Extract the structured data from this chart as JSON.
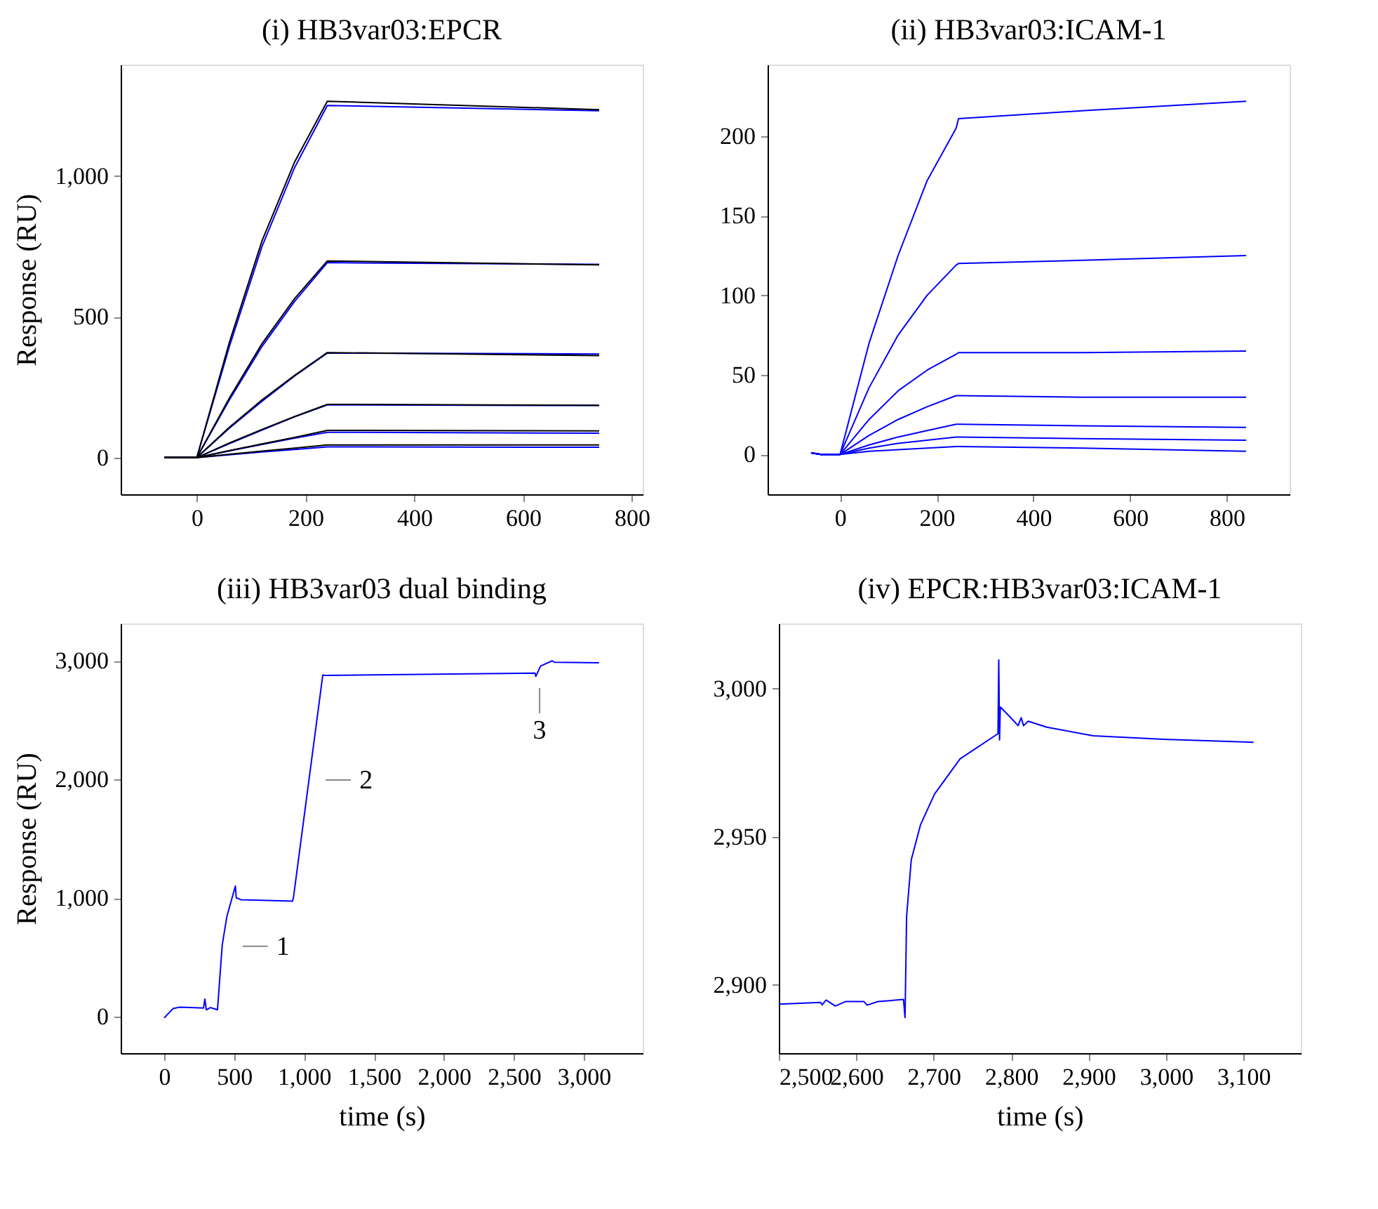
{
  "chart_data": [
    {
      "type": "line",
      "title": "(i) HB3var03:EPCR",
      "ylabel": "Response (RU)",
      "xlim": [
        -140,
        820
      ],
      "ylim": [
        -130,
        1395
      ],
      "xticks": [
        0,
        200,
        400,
        600,
        800
      ],
      "yticks": [
        0,
        500,
        {
          "value": 1000,
          "label": "1,000"
        }
      ],
      "grid": false,
      "legend": false,
      "series": [
        {
          "color": "#0000ff",
          "x": [
            -60,
            0,
            60,
            120,
            180,
            240,
            740
          ],
          "values": [
            0,
            0,
            395,
            750,
            1030,
            1250,
            1231
          ]
        },
        {
          "color": "#0000ff",
          "x": [
            -60,
            0,
            60,
            120,
            180,
            240,
            740
          ],
          "values": [
            0,
            0,
            205,
            395,
            555,
            692,
            686
          ]
        },
        {
          "color": "#0000ff",
          "x": [
            -60,
            0,
            60,
            120,
            180,
            240,
            740
          ],
          "values": [
            0,
            0,
            105,
            200,
            290,
            371,
            368
          ]
        },
        {
          "color": "#0000ff",
          "x": [
            -60,
            0,
            60,
            120,
            180,
            240,
            740
          ],
          "values": [
            0,
            0,
            50,
            98,
            145,
            187,
            185
          ]
        },
        {
          "color": "#0000ff",
          "x": [
            -60,
            0,
            60,
            120,
            180,
            240,
            740
          ],
          "values": [
            0,
            0,
            24,
            47,
            69,
            90,
            87
          ]
        },
        {
          "color": "#0000ff",
          "x": [
            -60,
            0,
            60,
            120,
            180,
            240,
            740
          ],
          "values": [
            0,
            0,
            10,
            20,
            29,
            38,
            37
          ]
        },
        {
          "color": "#000000",
          "x": [
            -60,
            0,
            60,
            120,
            180,
            240,
            740
          ],
          "values": [
            0,
            0,
            410,
            770,
            1050,
            1265,
            1235
          ]
        },
        {
          "color": "#000000",
          "x": [
            -60,
            0,
            60,
            120,
            180,
            240,
            740
          ],
          "values": [
            0,
            0,
            212,
            405,
            565,
            698,
            684
          ]
        },
        {
          "color": "#000000",
          "x": [
            -60,
            0,
            60,
            120,
            180,
            240,
            740
          ],
          "values": [
            0,
            0,
            108,
            205,
            292,
            373,
            362
          ]
        },
        {
          "color": "#000000",
          "x": [
            -60,
            0,
            60,
            120,
            180,
            240,
            740
          ],
          "values": [
            0,
            0,
            52,
            100,
            146,
            189,
            186
          ]
        },
        {
          "color": "#000000",
          "x": [
            -60,
            0,
            60,
            120,
            180,
            240,
            740
          ],
          "values": [
            0,
            0,
            25,
            49,
            72,
            97,
            95
          ]
        },
        {
          "color": "#000000",
          "x": [
            -60,
            0,
            60,
            120,
            180,
            240,
            740
          ],
          "values": [
            0,
            0,
            12,
            23,
            34,
            45,
            45
          ]
        }
      ]
    },
    {
      "type": "line",
      "title": "(ii) HB3var03:ICAM-1",
      "xlim": [
        -150,
        930
      ],
      "ylim": [
        -25,
        245
      ],
      "xticks": [
        0,
        200,
        400,
        600,
        800
      ],
      "yticks": [
        0,
        50,
        100,
        150,
        200
      ],
      "grid": false,
      "legend": false,
      "series": [
        {
          "color": "#0000ff",
          "x": [
            -60,
            -40,
            0,
            60,
            120,
            180,
            240,
            245,
            500,
            840
          ],
          "values": [
            1,
            0,
            0,
            70,
            125,
            172,
            205,
            211,
            216,
            222
          ]
        },
        {
          "color": "#0000ff",
          "x": [
            -60,
            -40,
            0,
            60,
            120,
            180,
            240,
            245,
            500,
            840
          ],
          "values": [
            1,
            0,
            0,
            42,
            75,
            100,
            119,
            120,
            122,
            125
          ]
        },
        {
          "color": "#0000ff",
          "x": [
            -60,
            -40,
            0,
            60,
            120,
            180,
            240,
            245,
            500,
            840
          ],
          "values": [
            1,
            0,
            0,
            22,
            40,
            53,
            63,
            64,
            64,
            65
          ]
        },
        {
          "color": "#0000ff",
          "x": [
            -60,
            -40,
            0,
            60,
            120,
            180,
            240,
            245,
            500,
            840
          ],
          "values": [
            1,
            0,
            0,
            12,
            22,
            30,
            37,
            37,
            36,
            36
          ]
        },
        {
          "color": "#0000ff",
          "x": [
            -60,
            -40,
            0,
            60,
            120,
            180,
            240,
            245,
            500,
            840
          ],
          "values": [
            1,
            0,
            0,
            6,
            11,
            15,
            19,
            19,
            18,
            17
          ]
        },
        {
          "color": "#0000ff",
          "x": [
            -60,
            -40,
            0,
            60,
            120,
            180,
            240,
            245,
            500,
            840
          ],
          "values": [
            1,
            0,
            0,
            4,
            7,
            9,
            11,
            11,
            10,
            9
          ]
        },
        {
          "color": "#0000ff",
          "x": [
            -60,
            -40,
            0,
            60,
            120,
            180,
            240,
            245,
            500,
            840
          ],
          "values": [
            1,
            0,
            0,
            2,
            3,
            4,
            5,
            5,
            4,
            2
          ]
        }
      ]
    },
    {
      "type": "line",
      "title": "(iii) HB3var03 dual binding",
      "xlabel": "time (s)",
      "ylabel": "Response (RU)",
      "xlim": [
        -311,
        3421
      ],
      "ylim": [
        -305,
        3315
      ],
      "xticks": [
        0,
        500,
        {
          "value": 1000,
          "label": "1,000"
        },
        {
          "value": 1500,
          "label": "1,500"
        },
        {
          "value": 2000,
          "label": "2,000"
        },
        {
          "value": 2500,
          "label": "2,500"
        },
        {
          "value": 3000,
          "label": "3,000"
        }
      ],
      "yticks": [
        0,
        {
          "value": 1000,
          "label": "1,000"
        },
        {
          "value": 2000,
          "label": "2,000"
        },
        {
          "value": 3000,
          "label": "3,000"
        }
      ],
      "grid": false,
      "legend": false,
      "annotations": [
        {
          "text": "1",
          "x": 440,
          "y": 595
        },
        {
          "text": "2",
          "x": 1034,
          "y": 1996
        },
        {
          "text": "3",
          "x": 2684,
          "y": 2889
        }
      ],
      "series": [
        {
          "color": "#0000ff",
          "x": [
            0,
            64,
            114,
            281,
            291,
            301,
            331,
            381,
            415,
            448,
            509,
            515,
            549,
            917,
            924,
            1134,
            1151,
            2651,
            2657,
            2691,
            2774,
            2791,
            3109
          ],
          "values": [
            -8,
            71,
            83,
            75,
            151,
            60,
            79,
            60,
            607,
            845,
            1103,
            1004,
            988,
            976,
            1004,
            2881,
            2877,
            2897,
            2869,
            2956,
            3000,
            2988,
            2984
          ]
        }
      ]
    },
    {
      "type": "line",
      "title": "(iv) EPCR:HB3var03:ICAM-1",
      "xlabel": "time (s)",
      "xlim": [
        2500,
        3174
      ],
      "ylim": [
        2877,
        3022
      ],
      "xticks": [
        {
          "value": 2500,
          "label": "2,500"
        },
        {
          "value": 2600,
          "label": "2,600"
        },
        {
          "value": 2700,
          "label": "2,700"
        },
        {
          "value": 2800,
          "label": "2,800"
        },
        {
          "value": 2900,
          "label": "2,900"
        },
        {
          "value": 3000,
          "label": "3,000"
        },
        {
          "value": 3100,
          "label": "3,100"
        }
      ],
      "yticks": [
        {
          "value": 2900,
          "label": "2,900"
        },
        {
          "value": 2950,
          "label": "2,950"
        },
        {
          "value": 3000,
          "label": "3,000"
        }
      ],
      "grid": false,
      "legend": false,
      "series": [
        {
          "color": "#0000ff",
          "x": [
            2500,
            2554,
            2556,
            2561,
            2573,
            2586,
            2610,
            2614,
            2628,
            2661,
            2663,
            2665,
            2671,
            2683,
            2701,
            2734,
            2783,
            2784,
            2785,
            2786,
            2798,
            2809,
            2813,
            2816,
            2822,
            2846,
            2906,
            2997,
            3113
          ],
          "values": [
            2893.5,
            2894.1,
            2893.3,
            2894.9,
            2892.9,
            2894.4,
            2894.4,
            2893.2,
            2894.4,
            2895.1,
            2889,
            2923.2,
            2942.2,
            2954.1,
            2964.4,
            2976.3,
            2984.8,
            3009.7,
            2982.7,
            2993.8,
            2990.6,
            2987.5,
            2990.2,
            2987.5,
            2989,
            2987,
            2984.1,
            2982.9,
            2981.9
          ]
        }
      ]
    }
  ]
}
